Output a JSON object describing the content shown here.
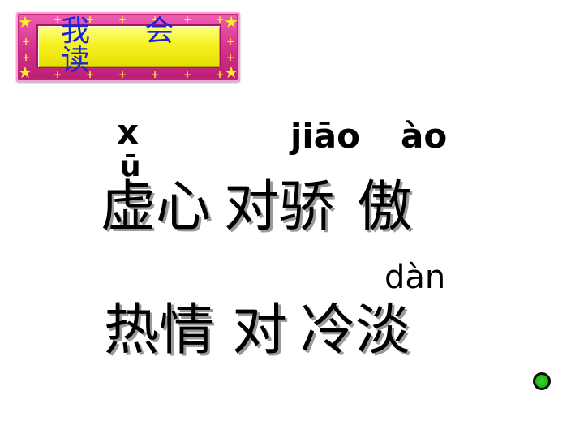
{
  "banner": {
    "title": "我 会 读"
  },
  "pinyin": {
    "xu": "x",
    "u_mark": "ū",
    "jiao": "jiāo",
    "ao": "ào",
    "dan": "dàn"
  },
  "lines": {
    "line1": {
      "w1": "虚心",
      "w2": "对",
      "w3": "骄",
      "w4": "傲"
    },
    "line2": {
      "w1": "热情",
      "w2": "对",
      "w3": "冷淡"
    }
  },
  "colors": {
    "banner_frame": "#d42f8c",
    "banner_fill": "#f7f222",
    "banner_text": "#1a24d8",
    "dot": "#28b81c"
  },
  "icons": {
    "banner_decor": "star-icon",
    "nav": "green-dot-icon"
  }
}
